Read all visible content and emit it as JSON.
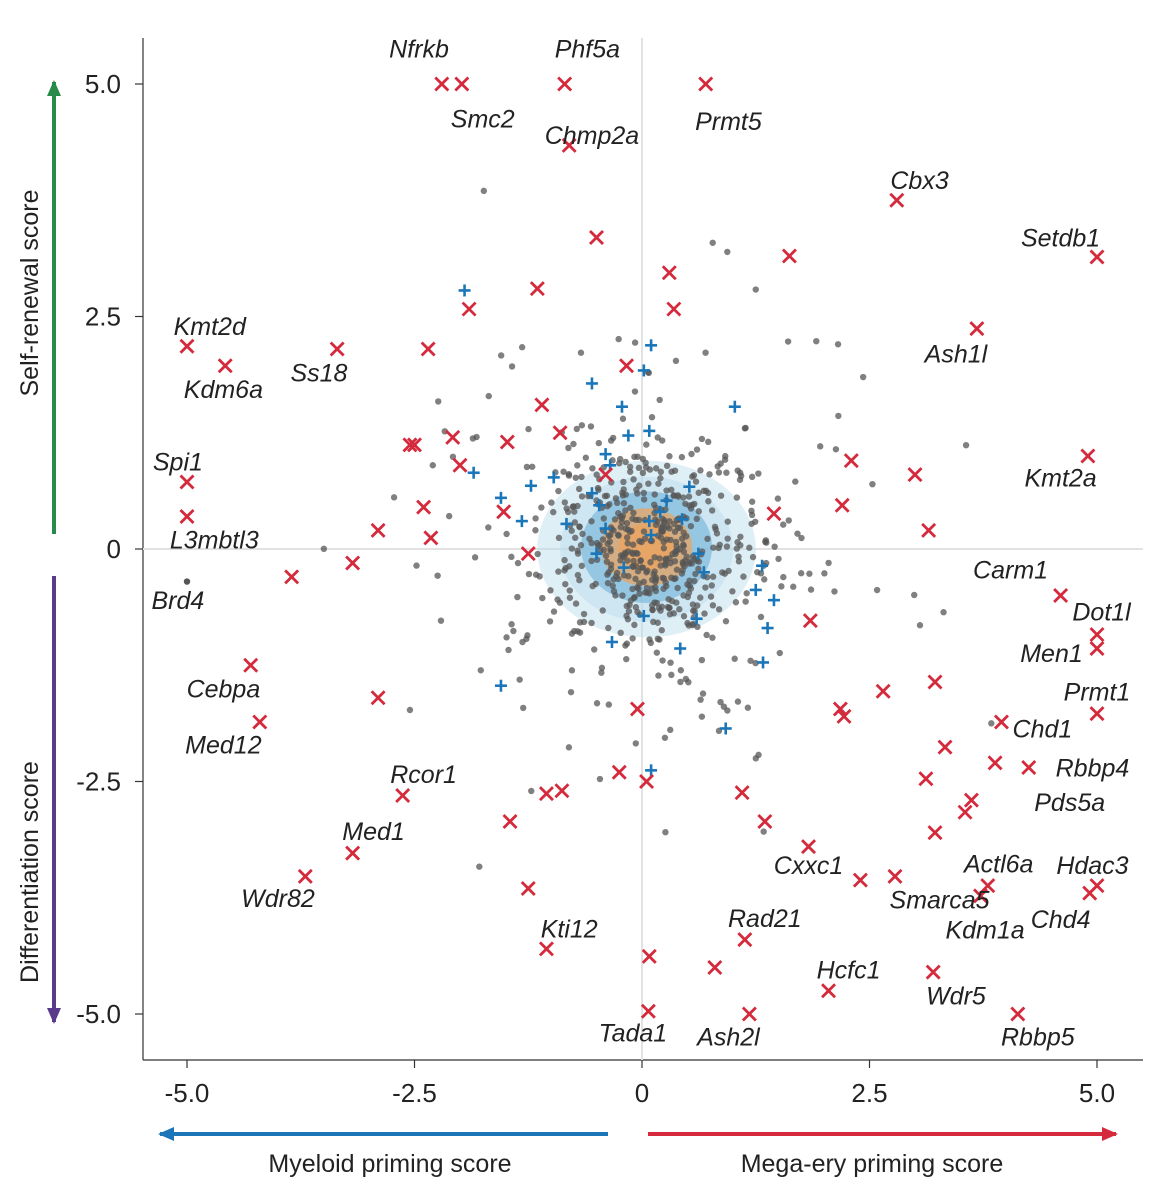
{
  "chart_data": {
    "type": "scatter",
    "xlim": [
      -5.5,
      5.5
    ],
    "ylim": [
      -5.5,
      5.5
    ],
    "x_ticks": [
      {
        "value": -5.0,
        "label": "-5.0"
      },
      {
        "value": -2.5,
        "label": "-2.5"
      },
      {
        "value": 0,
        "label": "0"
      },
      {
        "value": 2.5,
        "label": "2.5"
      },
      {
        "value": 5.0,
        "label": "5.0"
      }
    ],
    "y_ticks": [
      {
        "value": 5.0,
        "label": "5.0"
      },
      {
        "value": 2.5,
        "label": "2.5"
      },
      {
        "value": 0,
        "label": "0"
      },
      {
        "value": -2.5,
        "label": "-2.5"
      },
      {
        "value": -5.0,
        "label": "-5.0"
      }
    ],
    "axis_titles": {
      "x_negative": "Myeloid priming score",
      "x_positive": "Mega-ery priming score",
      "y_positive": "Self-renewal score",
      "y_negative": "Differentiation score"
    },
    "colors": {
      "highlight": "#d42a3c",
      "background_point": "#555555",
      "control": "#1a76b8",
      "myeloid_arrow": "#1a76b8",
      "megaery_arrow": "#d42a3c",
      "selfrenewal_arrow": "#2a8a4a",
      "differentiation_arrow": "#5a3a8a",
      "density_low": "#b9dbec",
      "density_mid": "#6fb3d9",
      "density_high": "#f0a35a"
    },
    "density_contours": [
      {
        "cx": 0.05,
        "cy": 0.0,
        "rx": 1.2,
        "ry": 0.95,
        "level": "low"
      },
      {
        "cx": 0.05,
        "cy": 0.0,
        "rx": 0.95,
        "ry": 0.78,
        "level": "low"
      },
      {
        "cx": 0.05,
        "cy": 0.02,
        "rx": 0.72,
        "ry": 0.6,
        "level": "mid"
      },
      {
        "cx": 0.05,
        "cy": 0.02,
        "rx": 0.5,
        "ry": 0.42,
        "level": "high"
      },
      {
        "cx": 0.05,
        "cy": 0.02,
        "rx": 0.3,
        "ry": 0.25,
        "level": "high"
      }
    ],
    "highlighted_genes": [
      {
        "label": "Nfrkb",
        "x": -2.2,
        "y": 5.0,
        "lx": -2.45,
        "ly": 5.38
      },
      {
        "label": "Smc2",
        "x": -1.98,
        "y": 5.0,
        "lx": -1.75,
        "ly": 4.63
      },
      {
        "label": "Phf5a",
        "x": -0.85,
        "y": 5.0,
        "lx": -0.6,
        "ly": 5.38
      },
      {
        "label": "Chmp2a",
        "x": -0.8,
        "y": 4.34,
        "lx": -0.55,
        "ly": 4.45
      },
      {
        "label": "Prmt5",
        "x": 0.7,
        "y": 5.0,
        "lx": 0.95,
        "ly": 4.6
      },
      {
        "label": "Cbx3",
        "x": 2.8,
        "y": 3.75,
        "lx": 3.05,
        "ly": 3.97
      },
      {
        "label": "Setdb1",
        "x": 5.0,
        "y": 3.14,
        "lx": 4.6,
        "ly": 3.35
      },
      {
        "label": "Kmt2d",
        "x": -5.0,
        "y": 2.18,
        "lx": -4.75,
        "ly": 2.4
      },
      {
        "label": "Kdm6a",
        "x": -4.58,
        "y": 1.97,
        "lx": -4.6,
        "ly": 1.72
      },
      {
        "label": "Ss18",
        "x": -3.35,
        "y": 2.15,
        "lx": -3.55,
        "ly": 1.9
      },
      {
        "label": "Ash1l",
        "x": 3.68,
        "y": 2.37,
        "lx": 3.45,
        "ly": 2.1
      },
      {
        "label": "Spi1",
        "x": -5.0,
        "y": 0.72,
        "lx": -5.1,
        "ly": 0.94
      },
      {
        "label": "Kmt2a",
        "x": 4.9,
        "y": 1.0,
        "lx": 4.6,
        "ly": 0.77
      },
      {
        "label": "L3mbtl3",
        "x": -5.0,
        "y": 0.35,
        "lx": -4.7,
        "ly": 0.1
      },
      {
        "label": "Brd4",
        "x": -5.0,
        "y": -0.35,
        "lx": -5.1,
        "ly": -0.55,
        "marker": "dot"
      },
      {
        "label": "Carm1",
        "x": 4.6,
        "y": -0.5,
        "lx": 4.05,
        "ly": -0.22
      },
      {
        "label": "Dot1l",
        "x": 5.0,
        "y": -0.92,
        "lx": 5.05,
        "ly": -0.67
      },
      {
        "label": "Men1",
        "x": 5.0,
        "y": -1.07,
        "lx": 4.5,
        "ly": -1.12
      },
      {
        "label": "Cebpa",
        "x": -4.3,
        "y": -1.25,
        "lx": -4.6,
        "ly": -1.5
      },
      {
        "label": "Prmt1",
        "x": 5.0,
        "y": -1.77,
        "lx": 5.0,
        "ly": -1.53
      },
      {
        "label": "Med12",
        "x": -4.2,
        "y": -1.86,
        "lx": -4.6,
        "ly": -2.1
      },
      {
        "label": "Chd1",
        "x": 3.95,
        "y": -1.86,
        "lx": 4.4,
        "ly": -1.93
      },
      {
        "label": "Rbbp4",
        "x": 4.25,
        "y": -2.35,
        "lx": 4.95,
        "ly": -2.35
      },
      {
        "label": "Rcor1",
        "x": -2.63,
        "y": -2.65,
        "lx": -2.4,
        "ly": -2.42
      },
      {
        "label": "Pds5a",
        "x": 3.62,
        "y": -2.7,
        "lx": 4.7,
        "ly": -2.72
      },
      {
        "label": "Med1",
        "x": -3.18,
        "y": -3.27,
        "lx": -2.95,
        "ly": -3.03
      },
      {
        "label": "Cxxc1",
        "x": 1.83,
        "y": -3.2,
        "lx": 1.83,
        "ly": -3.4
      },
      {
        "label": "Actl6a",
        "x": 3.8,
        "y": -3.62,
        "lx": 3.92,
        "ly": -3.38
      },
      {
        "label": "Hdac3",
        "x": 5.0,
        "y": -3.62,
        "lx": 4.95,
        "ly": -3.4
      },
      {
        "label": "Wdr82",
        "x": -3.7,
        "y": -3.52,
        "lx": -4.0,
        "ly": -3.75
      },
      {
        "label": "Smarca5",
        "x": 3.72,
        "y": -3.73,
        "lx": 3.27,
        "ly": -3.77
      },
      {
        "label": "Kdm1a",
        "x": 3.72,
        "y": -3.73,
        "lx": 3.77,
        "ly": -4.09
      },
      {
        "label": "Chd4",
        "x": 4.92,
        "y": -3.7,
        "lx": 4.6,
        "ly": -3.98
      },
      {
        "label": "Kti12",
        "x": -1.05,
        "y": -4.3,
        "lx": -0.8,
        "ly": -4.08
      },
      {
        "label": "Rad21",
        "x": 1.13,
        "y": -4.2,
        "lx": 1.35,
        "ly": -3.97
      },
      {
        "label": "Hcfc1",
        "x": 2.05,
        "y": -4.75,
        "lx": 2.27,
        "ly": -4.52
      },
      {
        "label": "Wdr5",
        "x": 3.2,
        "y": -4.55,
        "lx": 3.45,
        "ly": -4.8
      },
      {
        "label": "Tada1",
        "x": 0.07,
        "y": -4.97,
        "lx": -0.1,
        "ly": -5.2
      },
      {
        "label": "Ash2l",
        "x": 1.18,
        "y": -5.0,
        "lx": 0.95,
        "ly": -5.24
      },
      {
        "label": "Rbbp5",
        "x": 4.13,
        "y": -5.0,
        "lx": 4.35,
        "ly": -5.24
      }
    ],
    "other_hits": [
      [
        -0.5,
        3.35
      ],
      [
        -1.15,
        2.8
      ],
      [
        -1.9,
        2.58
      ],
      [
        0.3,
        2.97
      ],
      [
        0.35,
        2.58
      ],
      [
        1.62,
        3.15
      ],
      [
        -2.35,
        2.15
      ],
      [
        -0.17,
        1.97
      ],
      [
        -1.1,
        1.55
      ],
      [
        -0.9,
        1.25
      ],
      [
        -2.08,
        1.2
      ],
      [
        -2.55,
        1.12
      ],
      [
        -2.5,
        1.12
      ],
      [
        -1.48,
        1.15
      ],
      [
        -2.0,
        0.9
      ],
      [
        -1.52,
        0.4
      ],
      [
        -0.4,
        0.8
      ],
      [
        -2.4,
        0.45
      ],
      [
        -2.32,
        0.12
      ],
      [
        -2.9,
        0.2
      ],
      [
        -3.18,
        -0.15
      ],
      [
        -3.85,
        -0.3
      ],
      [
        -1.25,
        -0.05
      ],
      [
        1.45,
        0.38
      ],
      [
        2.3,
        0.95
      ],
      [
        2.2,
        0.47
      ],
      [
        3.0,
        0.8
      ],
      [
        3.15,
        0.2
      ],
      [
        1.85,
        -0.77
      ],
      [
        -2.9,
        -1.6
      ],
      [
        2.22,
        -1.8
      ],
      [
        2.18,
        -1.72
      ],
      [
        2.65,
        -1.53
      ],
      [
        3.22,
        -1.43
      ],
      [
        -0.05,
        -1.72
      ],
      [
        3.33,
        -2.13
      ],
      [
        -0.25,
        -2.4
      ],
      [
        0.05,
        -2.5
      ],
      [
        1.1,
        -2.62
      ],
      [
        -1.05,
        -2.63
      ],
      [
        -0.88,
        -2.6
      ],
      [
        -1.45,
        -2.93
      ],
      [
        1.35,
        -2.93
      ],
      [
        3.22,
        -3.05
      ],
      [
        3.12,
        -2.47
      ],
      [
        3.55,
        -2.83
      ],
      [
        3.88,
        -2.3
      ],
      [
        -1.25,
        -3.65
      ],
      [
        2.4,
        -3.56
      ],
      [
        2.78,
        -3.52
      ],
      [
        0.8,
        -4.5
      ],
      [
        0.08,
        -4.38
      ]
    ],
    "controls": [
      [
        -1.95,
        2.78
      ],
      [
        0.1,
        2.19
      ],
      [
        0.02,
        1.92
      ],
      [
        -0.55,
        1.78
      ],
      [
        1.02,
        1.53
      ],
      [
        -0.22,
        1.53
      ],
      [
        -0.15,
        1.22
      ],
      [
        0.08,
        1.27
      ],
      [
        -0.4,
        1.02
      ],
      [
        -0.35,
        0.9
      ],
      [
        -1.85,
        0.82
      ],
      [
        -0.97,
        0.77
      ],
      [
        -1.22,
        0.68
      ],
      [
        -1.55,
        0.55
      ],
      [
        -0.55,
        0.6
      ],
      [
        -0.47,
        0.47
      ],
      [
        0.27,
        0.52
      ],
      [
        0.52,
        0.67
      ],
      [
        0.2,
        0.4
      ],
      [
        -0.83,
        0.27
      ],
      [
        -1.32,
        0.3
      ],
      [
        0.08,
        0.3
      ],
      [
        0.44,
        0.32
      ],
      [
        -0.4,
        0.22
      ],
      [
        0.1,
        0.15
      ],
      [
        -0.5,
        -0.05
      ],
      [
        0.62,
        -0.05
      ],
      [
        -0.2,
        -0.2
      ],
      [
        0.68,
        -0.25
      ],
      [
        1.32,
        -0.18
      ],
      [
        1.25,
        -0.44
      ],
      [
        1.45,
        -0.55
      ],
      [
        0.02,
        -0.72
      ],
      [
        0.6,
        -0.75
      ],
      [
        1.38,
        -0.85
      ],
      [
        -0.33,
        -1.0
      ],
      [
        0.42,
        -1.07
      ],
      [
        1.33,
        -1.22
      ],
      [
        -1.55,
        -1.47
      ],
      [
        0.92,
        -1.93
      ],
      [
        0.1,
        -2.38
      ]
    ],
    "background_points": {
      "count": 620,
      "seed": 7
    }
  }
}
